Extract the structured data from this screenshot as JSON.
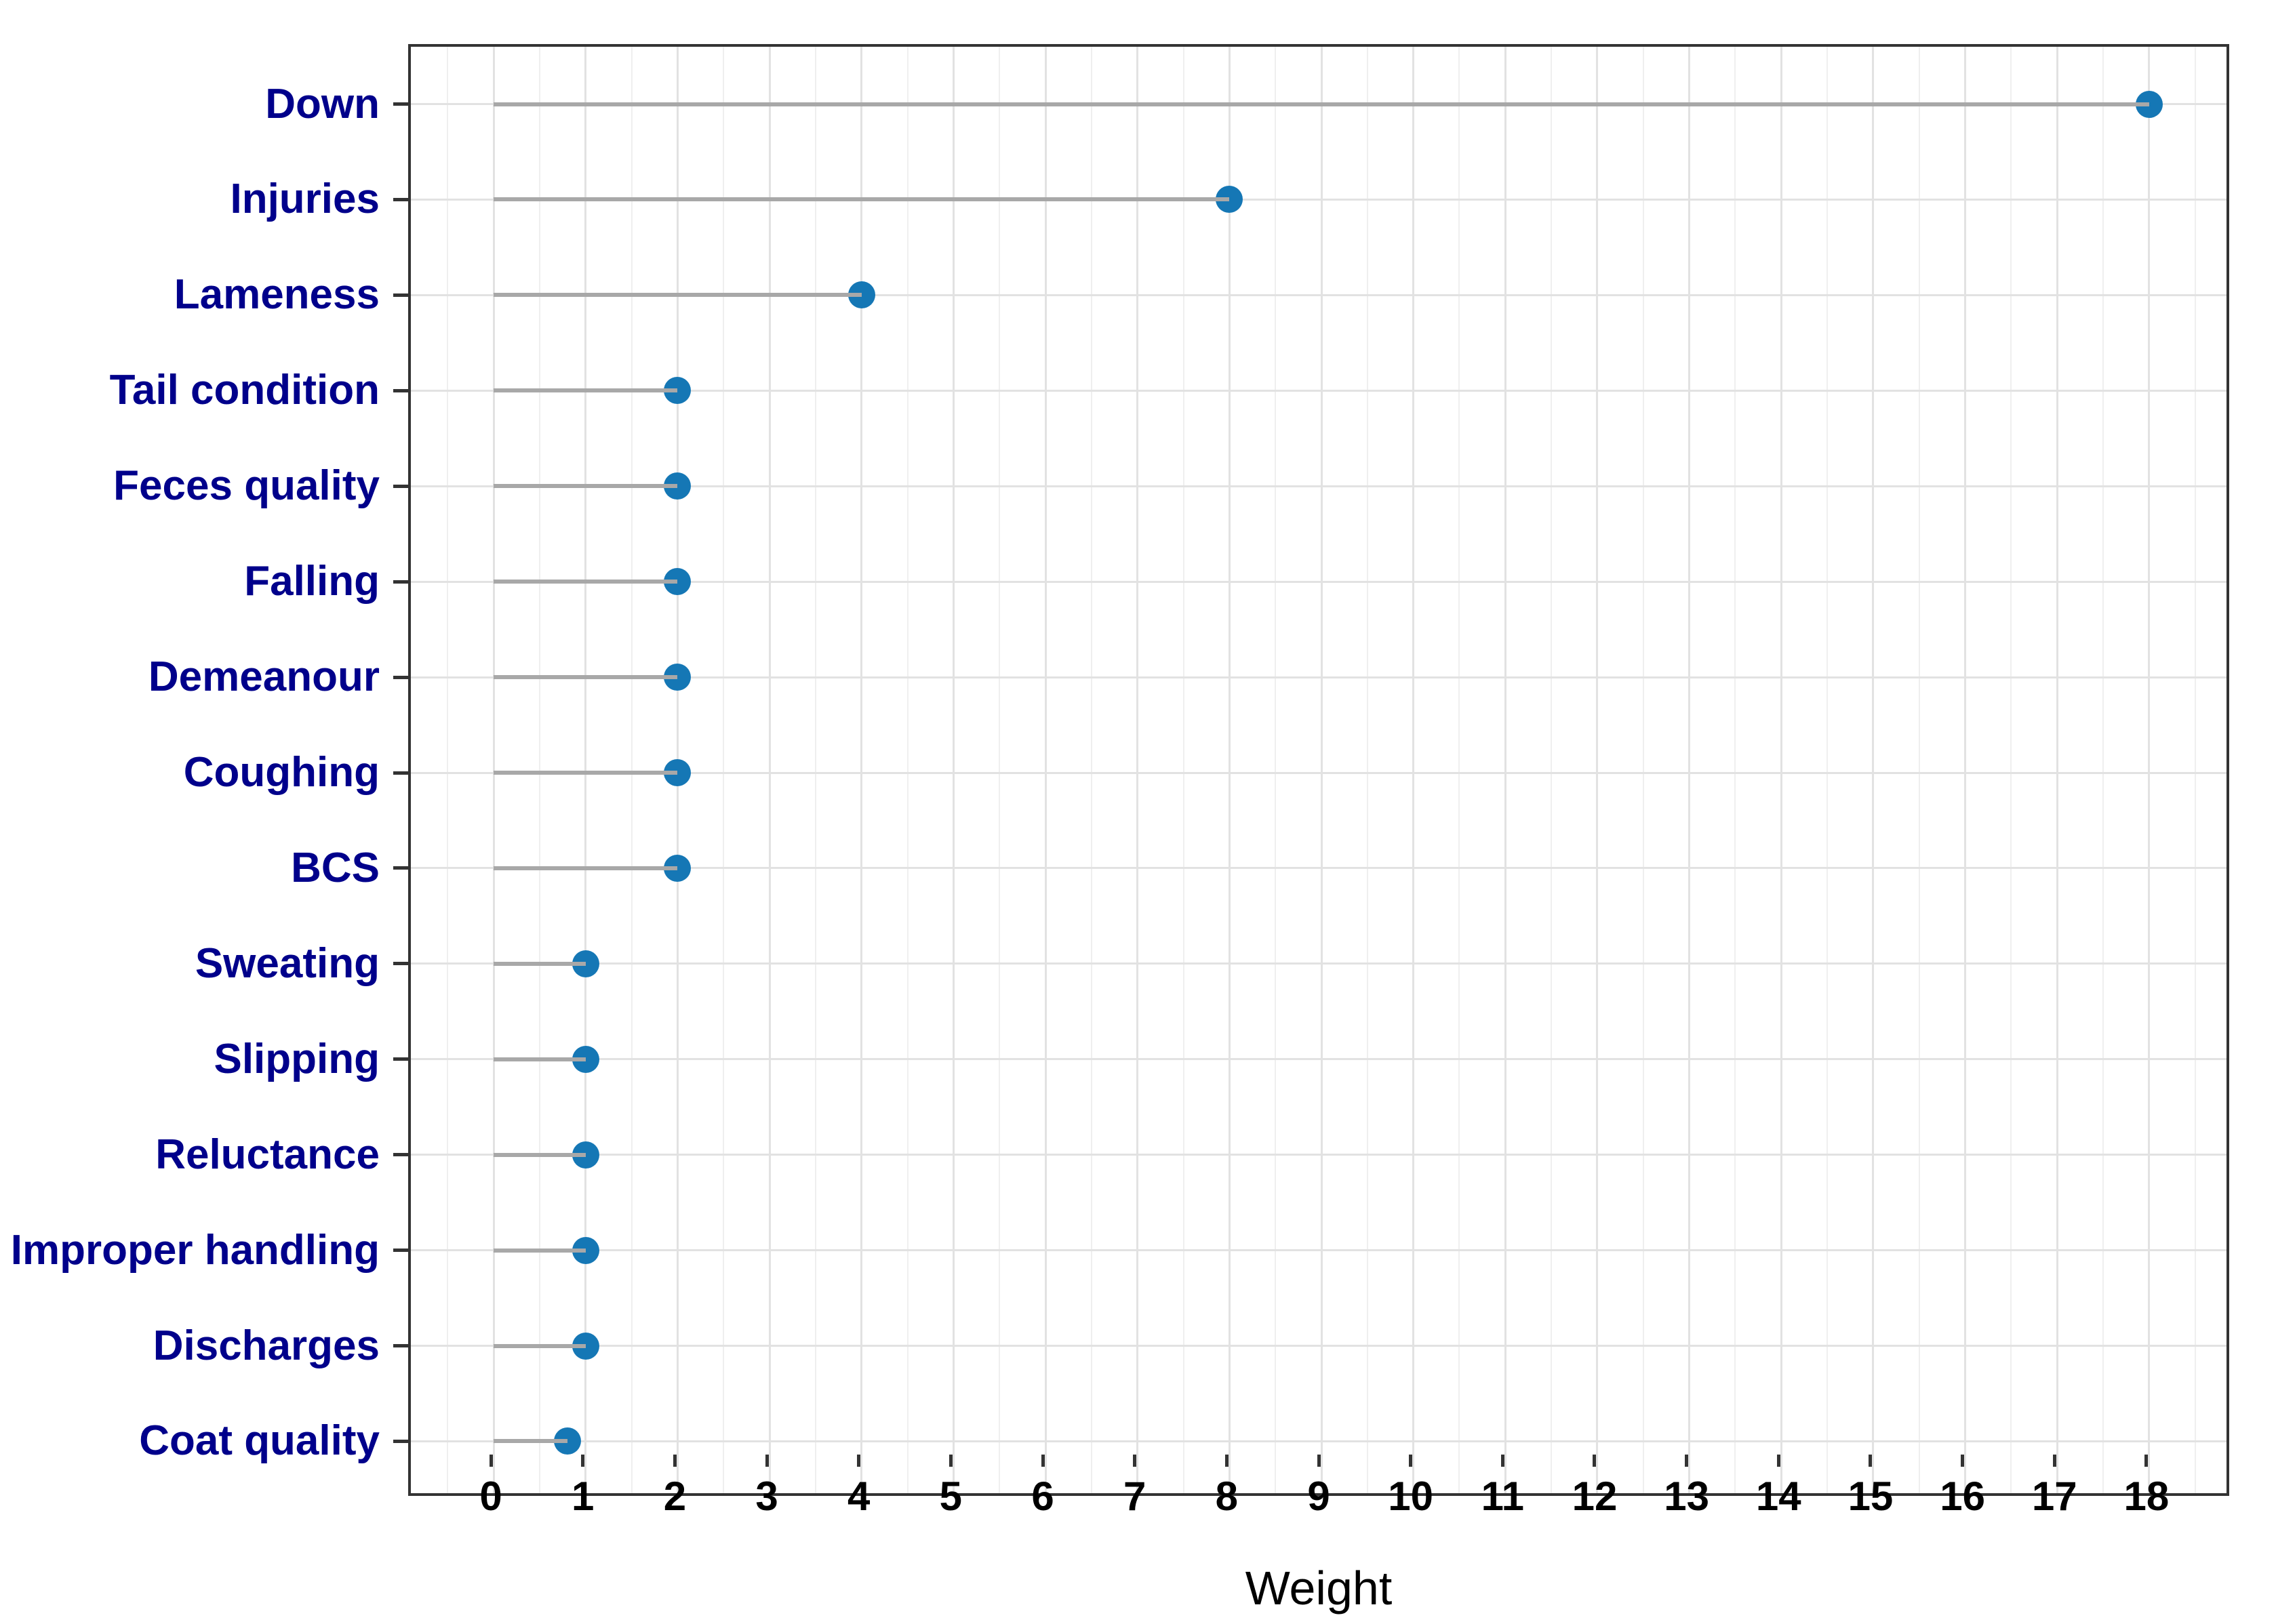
{
  "chart_data": {
    "type": "lollipop",
    "orientation": "horizontal",
    "title": "",
    "xlabel": "Weight",
    "ylabel": "",
    "categories": [
      "Down",
      "Injuries",
      "Lameness",
      "Tail condition",
      "Feces quality",
      "Falling",
      "Demeanour",
      "Coughing",
      "BCS",
      "Sweating",
      "Slipping",
      "Reluctance",
      "Improper handling",
      "Discharges",
      "Coat quality"
    ],
    "values": [
      18,
      8,
      4,
      2,
      2,
      2,
      2,
      2,
      2,
      1,
      1,
      1,
      1,
      1,
      0.8
    ],
    "x_ticks": [
      0,
      1,
      2,
      3,
      4,
      5,
      6,
      7,
      8,
      9,
      10,
      11,
      12,
      13,
      14,
      15,
      16,
      17,
      18
    ],
    "xlim": [
      -0.9,
      18.9
    ],
    "minor_grid_step": 0.5,
    "grid": "major-and-minor-vertical, major-horizontal",
    "legend": "none",
    "stem_start": 0
  },
  "colors": {
    "dot": "#1577b5",
    "stem": "#a8a8a8",
    "category_label": "#00008b",
    "tick_label": "#000000",
    "axis_title": "#000000",
    "grid_major": "#e2e2e2",
    "grid_minor": "#efefef",
    "panel_border": "#333333",
    "background": "#ffffff"
  }
}
